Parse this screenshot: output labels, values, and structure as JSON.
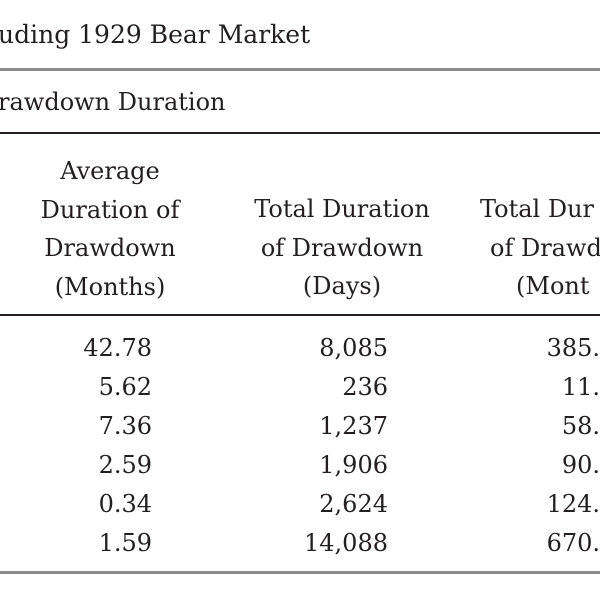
{
  "table": {
    "title": "uding 1929 Bear Market",
    "section_label": "rawdown Duration",
    "columns": [
      {
        "header_lines": [
          "Average",
          "Duration of",
          "Drawdown",
          "(Months)"
        ],
        "values": [
          "42.78",
          "5.62",
          "7.36",
          "2.59",
          "0.34",
          "1.59"
        ]
      },
      {
        "header_lines": [
          "Total Duration",
          "of Drawdown",
          "(Days)"
        ],
        "values": [
          "8,085",
          "236",
          "1,237",
          "1,906",
          "2,624",
          "14,088"
        ]
      },
      {
        "header_lines": [
          "Total Dur",
          "of Drawd",
          "(Mont"
        ],
        "values": [
          "385.",
          "11.",
          "58.",
          "90.",
          "124.",
          "670."
        ]
      }
    ]
  }
}
